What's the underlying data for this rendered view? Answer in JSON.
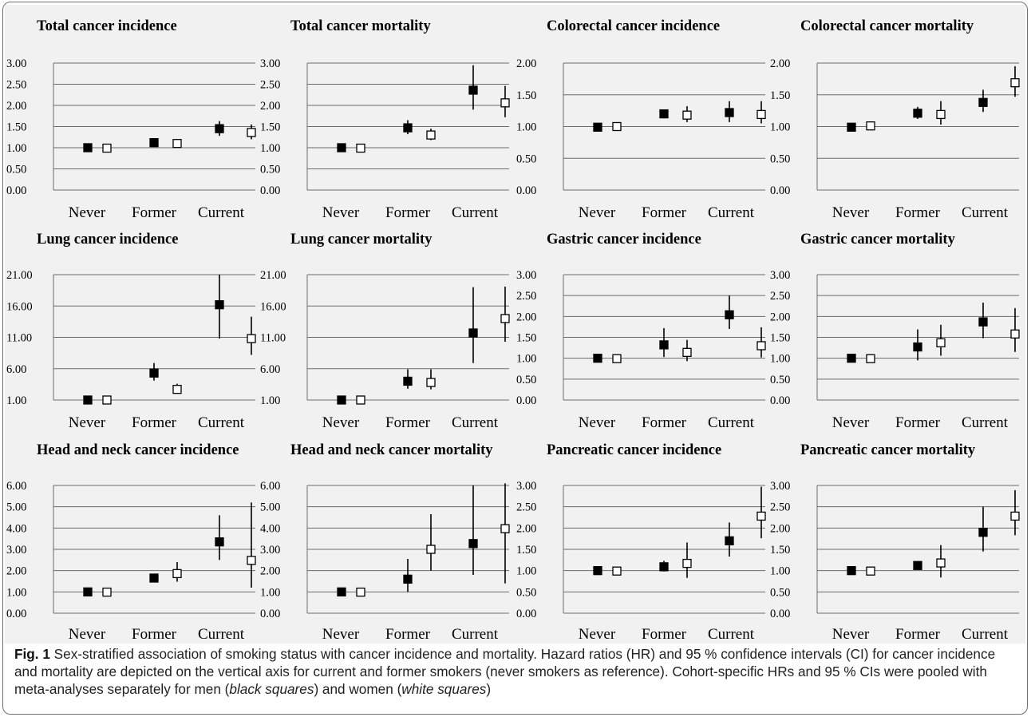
{
  "categories": [
    "Never",
    "Former",
    "Current"
  ],
  "legend": {
    "men": "black squares",
    "women": "white squares"
  },
  "colors": {
    "men_marker": "#000000",
    "women_marker": "#ffffff",
    "background": "#f1f1f1",
    "gridline": "#6b6b6b",
    "error_bar": "#000000"
  },
  "chart_data": [
    {
      "type": "scatter",
      "title": "Total cancer incidence",
      "ylim": [
        0,
        3
      ],
      "yticks": [
        "0.00",
        "0.50",
        "1.00",
        "1.50",
        "2.00",
        "2.50",
        "3.00"
      ],
      "categories": [
        "Never",
        "Former",
        "Current"
      ],
      "series": [
        {
          "name": "men",
          "values": [
            1.0,
            1.12,
            1.45
          ],
          "ci_low": [
            1.0,
            1.07,
            1.28
          ],
          "ci_high": [
            1.0,
            1.17,
            1.63
          ]
        },
        {
          "name": "women",
          "values": [
            0.99,
            1.1,
            1.36
          ],
          "ci_low": [
            0.99,
            1.04,
            1.2
          ],
          "ci_high": [
            0.99,
            1.16,
            1.55
          ]
        }
      ]
    },
    {
      "type": "scatter",
      "title": "Total cancer mortality",
      "ylim": [
        0,
        3
      ],
      "yticks": [
        "0.00",
        "0.50",
        "1.00",
        "1.50",
        "2.00",
        "2.50",
        "3.00"
      ],
      "categories": [
        "Never",
        "Former",
        "Current"
      ],
      "series": [
        {
          "name": "men",
          "values": [
            1.0,
            1.47,
            2.36
          ],
          "ci_low": [
            1.0,
            1.32,
            1.9
          ],
          "ci_high": [
            1.0,
            1.65,
            2.95
          ]
        },
        {
          "name": "women",
          "values": [
            0.99,
            1.3,
            2.06
          ],
          "ci_low": [
            0.99,
            1.18,
            1.72
          ],
          "ci_high": [
            0.99,
            1.45,
            2.46
          ]
        }
      ]
    },
    {
      "type": "scatter",
      "title": "Colorectal cancer incidence",
      "ylim": [
        0,
        2
      ],
      "yticks": [
        "0.00",
        "0.50",
        "1.00",
        "1.50",
        "2.00"
      ],
      "categories": [
        "Never",
        "Former",
        "Current"
      ],
      "series": [
        {
          "name": "men",
          "values": [
            0.99,
            1.2,
            1.22
          ],
          "ci_low": [
            0.99,
            1.15,
            1.07
          ],
          "ci_high": [
            0.99,
            1.26,
            1.4
          ]
        },
        {
          "name": "women",
          "values": [
            1.0,
            1.18,
            1.19
          ],
          "ci_low": [
            1.0,
            1.07,
            1.05
          ],
          "ci_high": [
            1.0,
            1.32,
            1.4
          ]
        }
      ]
    },
    {
      "type": "scatter",
      "title": "Colorectal cancer mortality",
      "ylim": [
        0,
        2
      ],
      "yticks": [
        "0.00",
        "0.50",
        "1.00",
        "1.50",
        "2.00"
      ],
      "categories": [
        "Never",
        "Former",
        "Current"
      ],
      "series": [
        {
          "name": "men",
          "values": [
            0.99,
            1.21,
            1.38
          ],
          "ci_low": [
            0.99,
            1.12,
            1.23
          ],
          "ci_high": [
            0.99,
            1.31,
            1.58
          ]
        },
        {
          "name": "women",
          "values": [
            1.01,
            1.19,
            1.69
          ],
          "ci_low": [
            1.01,
            1.03,
            1.47
          ],
          "ci_high": [
            1.01,
            1.4,
            1.95
          ]
        }
      ]
    },
    {
      "type": "scatter",
      "title": "Lung cancer incidence",
      "ylim": [
        1,
        21
      ],
      "yticks": [
        "1.00",
        "6.00",
        "11.00",
        "16.00",
        "21.00"
      ],
      "categories": [
        "Never",
        "Former",
        "Current"
      ],
      "series": [
        {
          "name": "men",
          "values": [
            1.0,
            5.3,
            16.2
          ],
          "ci_low": [
            1.0,
            4.1,
            10.8
          ],
          "ci_high": [
            1.0,
            6.9,
            21.0
          ]
        },
        {
          "name": "women",
          "values": [
            1.0,
            2.7,
            10.8
          ],
          "ci_low": [
            1.0,
            2.1,
            8.2
          ],
          "ci_high": [
            1.0,
            3.6,
            14.3
          ]
        }
      ]
    },
    {
      "type": "scatter",
      "title": "Lung cancer mortality",
      "ylim": [
        1,
        21
      ],
      "yticks": [
        "1.00",
        "6.00",
        "11.00",
        "16.00",
        "21.00"
      ],
      "categories": [
        "Never",
        "Former",
        "Current"
      ],
      "series": [
        {
          "name": "men",
          "values": [
            1.0,
            4.0,
            11.7
          ],
          "ci_low": [
            1.0,
            2.8,
            6.9
          ],
          "ci_high": [
            1.0,
            5.9,
            19.0
          ]
        },
        {
          "name": "women",
          "values": [
            1.0,
            3.8,
            14.0
          ],
          "ci_low": [
            1.0,
            2.7,
            10.3
          ],
          "ci_high": [
            1.0,
            5.9,
            19.1
          ]
        }
      ]
    },
    {
      "type": "scatter",
      "title": "Gastric cancer incidence",
      "ylim": [
        0,
        3
      ],
      "yticks": [
        "0.00",
        "0.50",
        "1.00",
        "1.50",
        "2.00",
        "2.50",
        "3.00"
      ],
      "categories": [
        "Never",
        "Former",
        "Current"
      ],
      "series": [
        {
          "name": "men",
          "values": [
            1.0,
            1.32,
            2.04
          ],
          "ci_low": [
            1.0,
            1.03,
            1.7
          ],
          "ci_high": [
            1.0,
            1.72,
            2.5
          ]
        },
        {
          "name": "women",
          "values": [
            0.99,
            1.14,
            1.3
          ],
          "ci_low": [
            0.99,
            0.93,
            1.02
          ],
          "ci_high": [
            0.99,
            1.44,
            1.74
          ]
        }
      ]
    },
    {
      "type": "scatter",
      "title": "Gastric cancer mortality",
      "ylim": [
        0,
        3
      ],
      "yticks": [
        "0.00",
        "0.50",
        "1.00",
        "1.50",
        "2.00",
        "2.50",
        "3.00"
      ],
      "categories": [
        "Never",
        "Former",
        "Current"
      ],
      "series": [
        {
          "name": "men",
          "values": [
            1.0,
            1.27,
            1.87
          ],
          "ci_low": [
            1.0,
            0.95,
            1.48
          ],
          "ci_high": [
            1.0,
            1.69,
            2.33
          ]
        },
        {
          "name": "women",
          "values": [
            0.99,
            1.37,
            1.58
          ],
          "ci_low": [
            0.99,
            1.06,
            1.15
          ],
          "ci_high": [
            0.99,
            1.8,
            2.2
          ]
        }
      ]
    },
    {
      "type": "scatter",
      "title": "Head and neck cancer incidence",
      "ylim": [
        0,
        6
      ],
      "yticks": [
        "0.00",
        "1.00",
        "2.00",
        "3.00",
        "4.00",
        "5.00",
        "6.00"
      ],
      "categories": [
        "Never",
        "Former",
        "Current"
      ],
      "series": [
        {
          "name": "men",
          "values": [
            1.0,
            1.65,
            3.35
          ],
          "ci_low": [
            1.0,
            1.52,
            2.5
          ],
          "ci_high": [
            1.0,
            1.8,
            4.6
          ]
        },
        {
          "name": "women",
          "values": [
            0.99,
            1.86,
            2.48
          ],
          "ci_low": [
            0.99,
            1.48,
            1.2
          ],
          "ci_high": [
            0.99,
            2.4,
            5.2
          ]
        }
      ]
    },
    {
      "type": "scatter",
      "title": "Head and neck cancer mortality",
      "ylim": [
        0,
        6
      ],
      "yticks": [
        "0.00",
        "1.00",
        "2.00",
        "3.00",
        "4.00",
        "5.00",
        "6.00"
      ],
      "categories": [
        "Never",
        "Former",
        "Current"
      ],
      "series": [
        {
          "name": "men",
          "values": [
            1.0,
            1.6,
            3.27
          ],
          "ci_low": [
            1.0,
            1.0,
            1.8
          ],
          "ci_high": [
            1.0,
            2.55,
            6.0
          ]
        },
        {
          "name": "women",
          "values": [
            0.99,
            3.0,
            3.97
          ],
          "ci_low": [
            0.99,
            2.0,
            1.4
          ],
          "ci_high": [
            0.99,
            4.65,
            6.1
          ]
        }
      ]
    },
    {
      "type": "scatter",
      "title": "Pancreatic cancer incidence",
      "ylim": [
        0,
        3
      ],
      "yticks": [
        "0.00",
        "0.50",
        "1.00",
        "1.50",
        "2.00",
        "2.50",
        "3.00"
      ],
      "categories": [
        "Never",
        "Former",
        "Current"
      ],
      "series": [
        {
          "name": "men",
          "values": [
            1.0,
            1.09,
            1.7
          ],
          "ci_low": [
            1.0,
            0.98,
            1.33
          ],
          "ci_high": [
            1.0,
            1.23,
            2.13
          ]
        },
        {
          "name": "women",
          "values": [
            0.99,
            1.17,
            2.28
          ],
          "ci_low": [
            0.99,
            0.83,
            1.76
          ],
          "ci_high": [
            0.99,
            1.66,
            2.97
          ]
        }
      ]
    },
    {
      "type": "scatter",
      "title": "Pancreatic cancer mortality",
      "ylim": [
        0,
        3
      ],
      "yticks": [
        "0.00",
        "0.50",
        "1.00",
        "1.50",
        "2.00",
        "2.50",
        "3.00"
      ],
      "categories": [
        "Never",
        "Former",
        "Current"
      ],
      "series": [
        {
          "name": "men",
          "values": [
            1.0,
            1.12,
            1.9
          ],
          "ci_low": [
            1.0,
            1.03,
            1.45
          ],
          "ci_high": [
            1.0,
            1.22,
            2.5
          ]
        },
        {
          "name": "women",
          "values": [
            0.99,
            1.18,
            2.28
          ],
          "ci_low": [
            0.99,
            0.84,
            1.83
          ],
          "ci_high": [
            0.99,
            1.6,
            2.89
          ]
        }
      ]
    }
  ],
  "caption": {
    "label": "Fig. 1",
    "text": " Sex-stratified association of smoking status with cancer incidence and mortality. Hazard ratios (HR) and 95 % confidence intervals (CI) for cancer incidence and mortality are depicted on the vertical axis for current and former smokers (never smokers as reference). Cohort-specific HRs and 95 % CIs were pooled with meta-analyses separately for men (",
    "men_label": "black squares",
    "mid_text": ") and women (",
    "women_label": "white squares",
    "end_text": ")"
  }
}
